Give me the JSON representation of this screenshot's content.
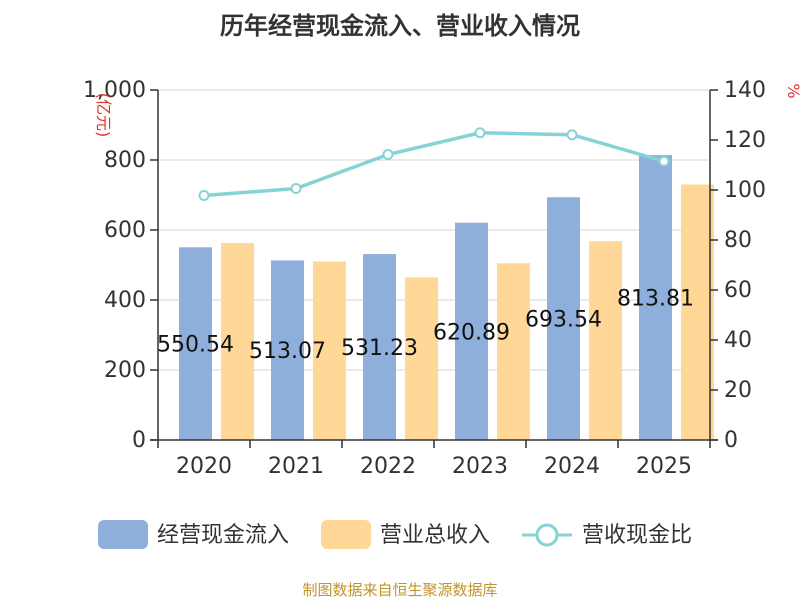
{
  "chart_data": {
    "type": "bar",
    "title": "历年经营现金流入、营业收入情况",
    "categories": [
      "2020",
      "2021",
      "2022",
      "2023",
      "2024",
      "2025"
    ],
    "y_left_label": "(亿元)",
    "y_right_label": "%",
    "y_left_range": [
      0,
      1000
    ],
    "y_left_ticks": [
      0,
      200,
      400,
      600,
      800,
      1000
    ],
    "y_left_tick_labels": [
      "0",
      "200",
      "400",
      "600",
      "800",
      "1,000"
    ],
    "y_right_range": [
      0,
      140
    ],
    "y_right_ticks": [
      0,
      20,
      40,
      60,
      80,
      100,
      120,
      140
    ],
    "y_right_tick_labels": [
      "0",
      "20",
      "40",
      "60",
      "80",
      "100",
      "120",
      "140"
    ],
    "grid": true,
    "legend_position": "bottom",
    "series": [
      {
        "name": "经营现金流入",
        "kind": "bar",
        "axis": "left",
        "color": "#8eaedb",
        "values": [
          550.54,
          513.07,
          531.23,
          620.89,
          693.54,
          813.81
        ],
        "data_labels": [
          "550.54",
          "513.07",
          "531.23",
          "620.89",
          "693.54",
          "813.81"
        ]
      },
      {
        "name": "营业总收入",
        "kind": "bar",
        "axis": "left",
        "color": "#ffd898",
        "values": [
          563,
          510,
          465,
          505,
          568,
          730
        ]
      },
      {
        "name": "营收现金比",
        "kind": "line",
        "axis": "right",
        "color": "#86d3d6",
        "values": [
          97.8,
          100.6,
          114.2,
          122.9,
          122.1,
          111.5
        ]
      }
    ]
  },
  "footer": {
    "source": "制图数据来自恒生聚源数据库"
  }
}
